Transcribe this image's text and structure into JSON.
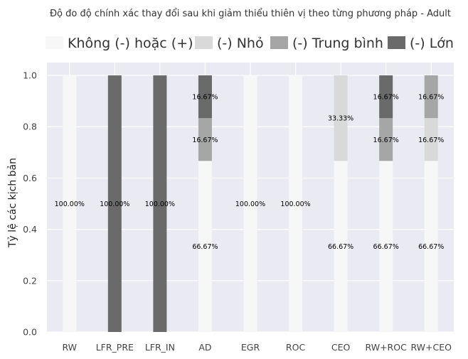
{
  "chart_data": {
    "type": "bar",
    "stacked": true,
    "title": "Độ đo độ chính xác thay đổi sau khi giảm thiểu thiên vị theo từng phương pháp - Adult",
    "xlabel": "",
    "ylabel": "Tỷ lệ các kịch bản",
    "ylim": [
      0,
      1.05
    ],
    "yticks": [
      0.0,
      0.2,
      0.4,
      0.6,
      0.8,
      1.0
    ],
    "ytick_labels": [
      "0.0",
      "0.2",
      "0.4",
      "0.6",
      "0.8",
      "1.0"
    ],
    "grid": true,
    "legend_position": "top",
    "categories": [
      "RW",
      "LFR_PRE",
      "LFR_IN",
      "AD",
      "EGR",
      "ROC",
      "CEO",
      "RW+ROC",
      "RW+CEO"
    ],
    "series": [
      {
        "name": "Không (-) hoặc (+)",
        "color": "#f7f7f7",
        "values": [
          1.0,
          0,
          0,
          0.6667,
          1.0,
          1.0,
          0.6667,
          0.6667,
          0.6667
        ],
        "labels": [
          "100.00%",
          "",
          "",
          "66.67%",
          "100.00%",
          "100.00%",
          "66.67%",
          "66.67%",
          "66.67%"
        ]
      },
      {
        "name": "(-) Nhỏ",
        "color": "#d9d9d9",
        "values": [
          0,
          0,
          0,
          0,
          0,
          0,
          0.3333,
          0,
          0.1667
        ],
        "labels": [
          "",
          "",
          "",
          "",
          "",
          "",
          "33.33%",
          "",
          "16.67%"
        ]
      },
      {
        "name": "(-) Trung bình",
        "color": "#a6a6a6",
        "values": [
          0,
          0,
          0,
          0.1667,
          0,
          0,
          0,
          0.1667,
          0.1667
        ],
        "labels": [
          "",
          "",
          "",
          "16.67%",
          "",
          "",
          "",
          "16.67%",
          "16.67%"
        ]
      },
      {
        "name": "(-) Lớn",
        "color": "#6a6a6a",
        "values": [
          0,
          1.0,
          1.0,
          0.1667,
          0,
          0,
          0,
          0.1667,
          0
        ],
        "labels": [
          "",
          "100.00%",
          "100.00%",
          "16.67%",
          "",
          "",
          "",
          "16.67%",
          ""
        ]
      }
    ]
  }
}
